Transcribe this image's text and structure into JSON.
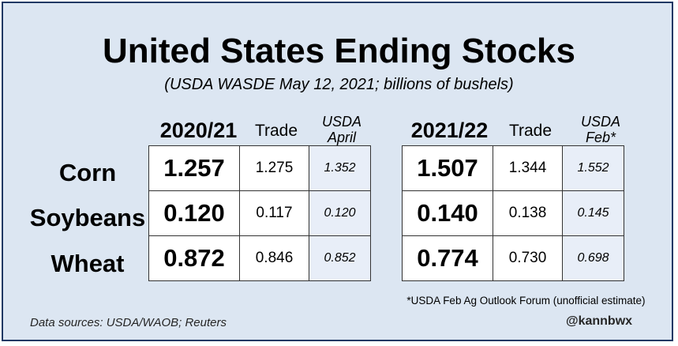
{
  "chart_data": {
    "type": "table",
    "title": "United States Ending Stocks",
    "subtitle": "(USDA WASDE May 12, 2021; billions of bushels)",
    "groups": [
      {
        "year": "2020/21",
        "columns": [
          "Trade",
          "USDA April"
        ],
        "rows": [
          {
            "commodity": "Corn",
            "usda": "1.257",
            "trade": "1.275",
            "prior": "1.352"
          },
          {
            "commodity": "Soybeans",
            "usda": "0.120",
            "trade": "0.117",
            "prior": "0.120"
          },
          {
            "commodity": "Wheat",
            "usda": "0.872",
            "trade": "0.846",
            "prior": "0.852"
          }
        ]
      },
      {
        "year": "2021/22",
        "columns": [
          "Trade",
          "USDA Feb*"
        ],
        "rows": [
          {
            "commodity": "Corn",
            "usda": "1.507",
            "trade": "1.344",
            "prior": "1.552"
          },
          {
            "commodity": "Soybeans",
            "usda": "0.140",
            "trade": "0.138",
            "prior": "0.145"
          },
          {
            "commodity": "Wheat",
            "usda": "0.774",
            "trade": "0.730",
            "prior": "0.698"
          }
        ]
      }
    ]
  },
  "headers": {
    "g1_year": "2020/21",
    "g1_trade": "Trade",
    "g1_usda_1": "USDA",
    "g1_usda_2": "April",
    "g2_year": "2021/22",
    "g2_trade": "Trade",
    "g2_usda_1": "USDA",
    "g2_usda_2": "Feb*"
  },
  "row_labels": [
    "Corn",
    "Soybeans",
    "Wheat"
  ],
  "footnote": "*USDA Feb Ag Outlook Forum (unofficial estimate)",
  "sources": "Data sources: USDA/WAOB; Reuters",
  "handle": "@kannbwx",
  "colors": {
    "background": "#dce6f2",
    "border": "#1f3864",
    "cell": "#ffffff",
    "usda_cell": "#e8eef8"
  }
}
